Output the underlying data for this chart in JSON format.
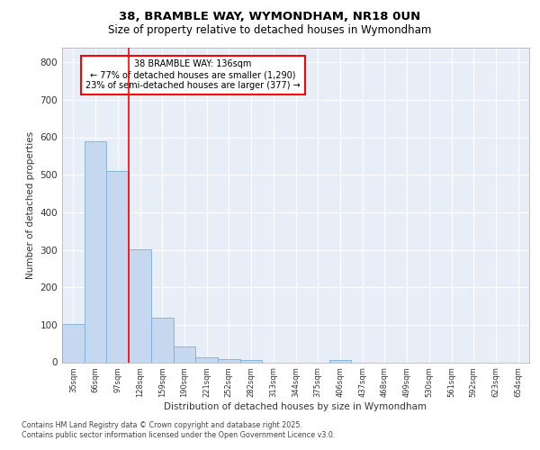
{
  "title_line1": "38, BRAMBLE WAY, WYMONDHAM, NR18 0UN",
  "title_line2": "Size of property relative to detached houses in Wymondham",
  "xlabel": "Distribution of detached houses by size in Wymondham",
  "ylabel": "Number of detached properties",
  "bar_labels": [
    "35sqm",
    "66sqm",
    "97sqm",
    "128sqm",
    "159sqm",
    "190sqm",
    "221sqm",
    "252sqm",
    "282sqm",
    "313sqm",
    "344sqm",
    "375sqm",
    "406sqm",
    "437sqm",
    "468sqm",
    "499sqm",
    "530sqm",
    "561sqm",
    "592sqm",
    "623sqm",
    "654sqm"
  ],
  "bar_values": [
    103,
    590,
    510,
    302,
    120,
    42,
    14,
    8,
    5,
    0,
    0,
    0,
    6,
    0,
    0,
    0,
    0,
    0,
    0,
    0,
    0
  ],
  "bar_color": "#c5d8f0",
  "bar_edge_color": "#7bafd4",
  "red_line_label": "38 BRAMBLE WAY: 136sqm",
  "annotation_line2": "← 77% of detached houses are smaller (1,290)",
  "annotation_line3": "23% of semi-detached houses are larger (377) →",
  "ylim": [
    0,
    840
  ],
  "yticks": [
    0,
    100,
    200,
    300,
    400,
    500,
    600,
    700,
    800
  ],
  "background_color": "#e8eef8",
  "grid_color": "#ffffff",
  "footer_line1": "Contains HM Land Registry data © Crown copyright and database right 2025.",
  "footer_line2": "Contains public sector information licensed under the Open Government Licence v3.0."
}
